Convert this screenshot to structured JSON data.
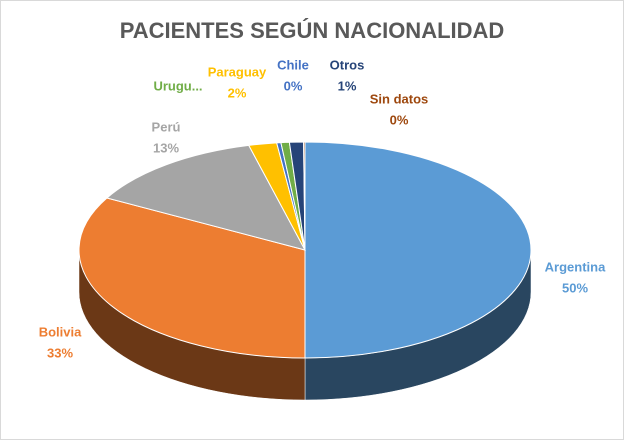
{
  "chart_data": {
    "type": "pie",
    "title": "PACIENTES SEGÚN NACIONALIDAD",
    "categories": [
      "Argentina",
      "Bolivia",
      "Perú",
      "Paraguay",
      "Chile",
      "Urugu...",
      "Otros",
      "Sin datos"
    ],
    "values": [
      50,
      33,
      13,
      2,
      0.3,
      0.6,
      1,
      0.1
    ],
    "value_labels": [
      "50%",
      "33%",
      "13%",
      "2%",
      "0%",
      null,
      "1%",
      "0%"
    ],
    "colors": [
      "#5b9bd5",
      "#ed7d31",
      "#a5a5a5",
      "#ffc000",
      "#4472c4",
      "#70ad47",
      "#264478",
      "#9e480e"
    ]
  }
}
